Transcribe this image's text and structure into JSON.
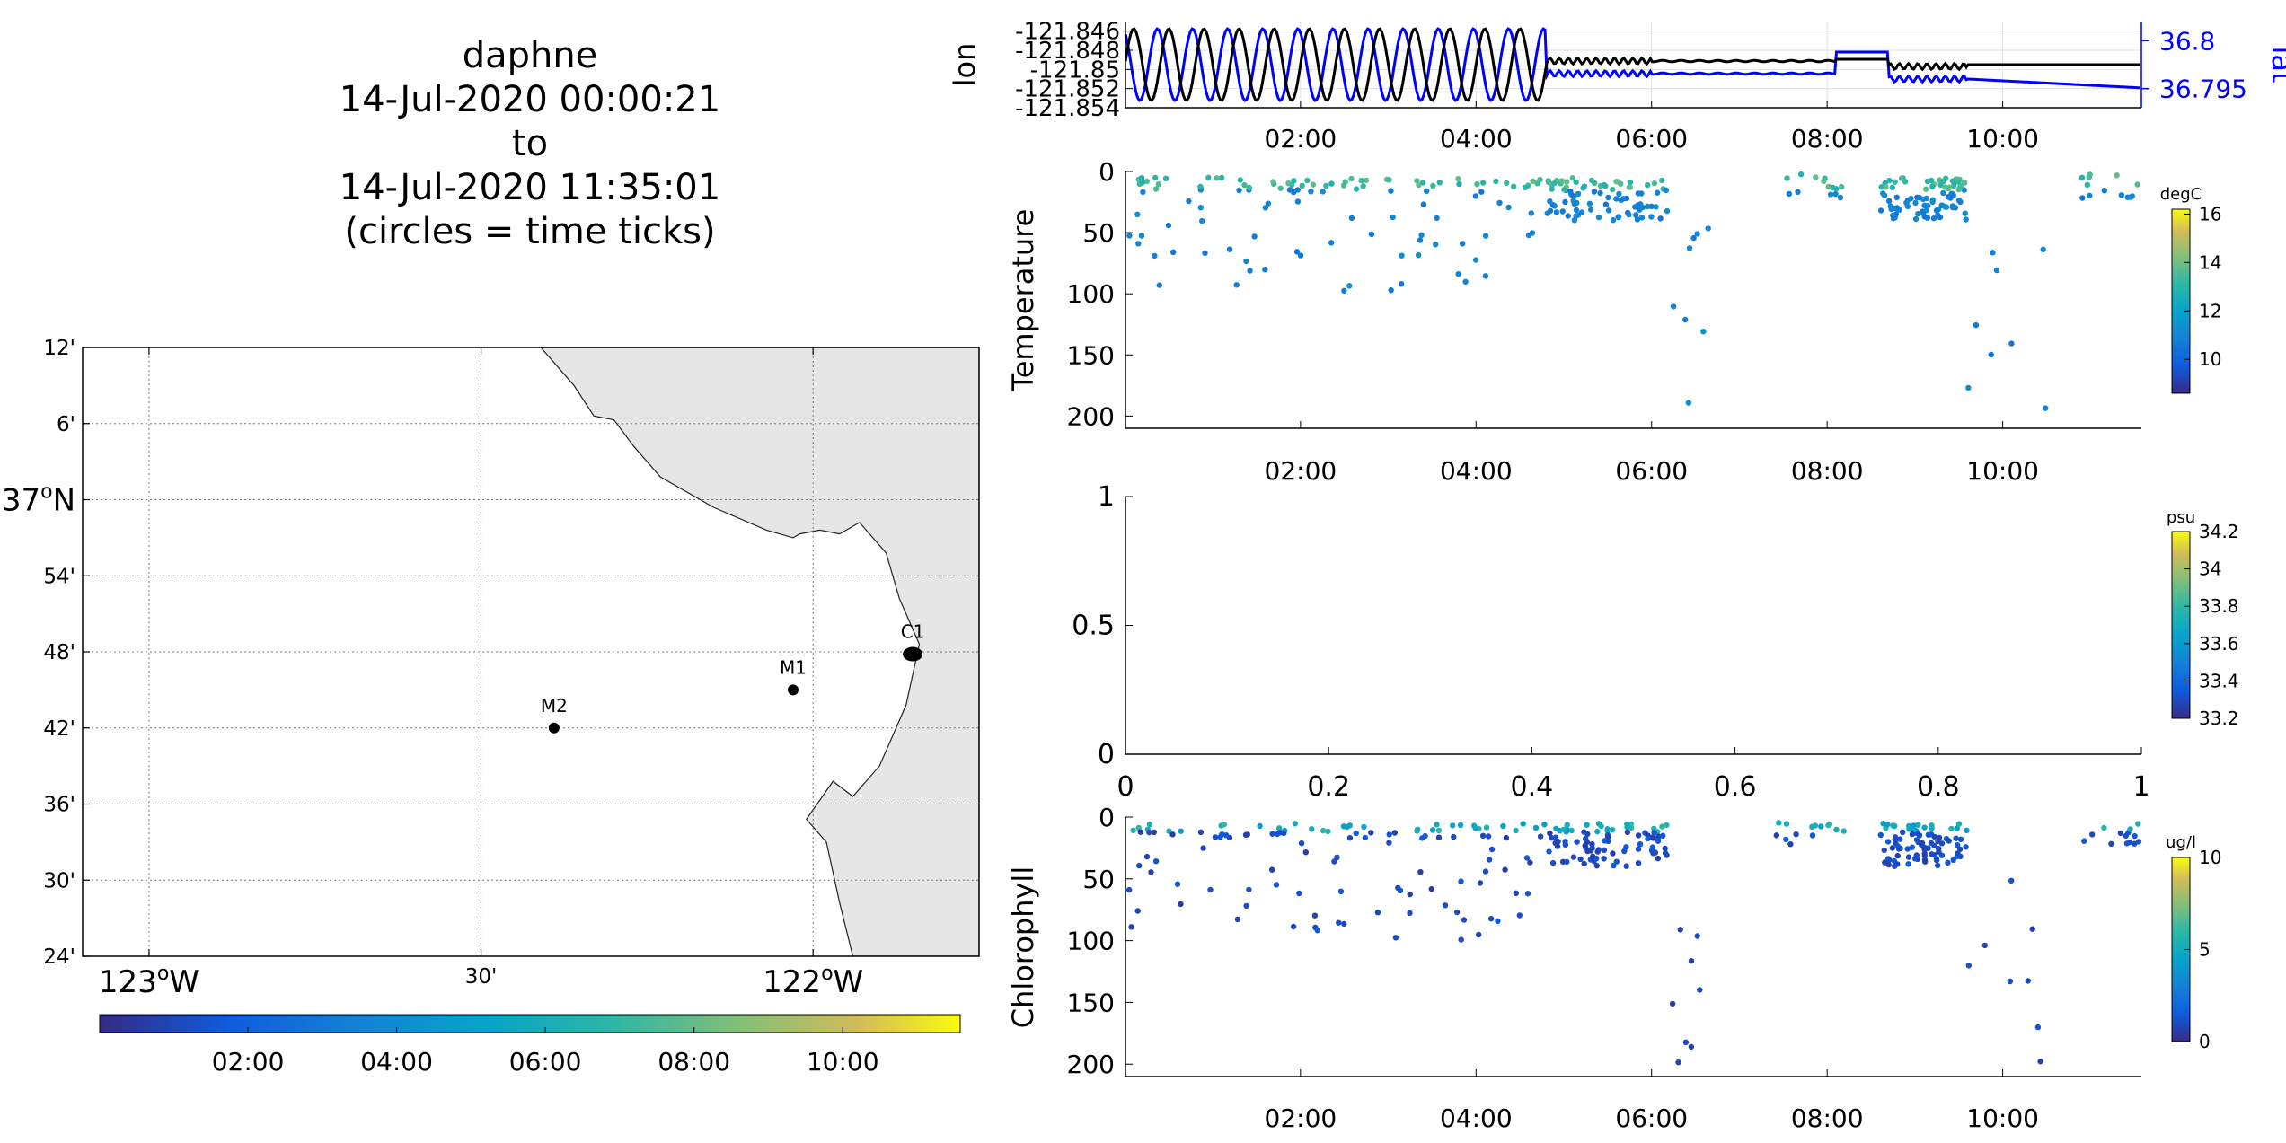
{
  "header": {
    "lines": [
      "daphne",
      "14-Jul-2020 00:00:21",
      "to",
      "14-Jul-2020 11:35:01",
      "(circles = time ticks)"
    ]
  },
  "colors": {
    "lon_line": "#000000",
    "lat_line": "#0000ff",
    "land": "#e6e6e6",
    "grid": "#888888"
  },
  "chart_data": [
    {
      "id": "map",
      "type": "scatter",
      "lat_ticks": [
        {
          "value": 37.2,
          "label": "12'"
        },
        {
          "value": 37.1,
          "label": "6'"
        },
        {
          "value": 37.0,
          "label": "37",
          "sup": "o",
          "suffix": "N"
        },
        {
          "value": 36.9,
          "label": "54'"
        },
        {
          "value": 36.8,
          "label": "48'"
        },
        {
          "value": 36.7,
          "label": "42'"
        },
        {
          "value": 36.6,
          "label": "36'"
        },
        {
          "value": 36.5,
          "label": "30'"
        },
        {
          "value": 36.4,
          "label": "24'"
        }
      ],
      "lon_ticks": [
        {
          "value": -123.0,
          "label": "123",
          "sup": "o",
          "suffix": "W"
        },
        {
          "value": -122.5,
          "label": "30'"
        },
        {
          "value": -122.0,
          "label": "122",
          "sup": "o",
          "suffix": "W"
        }
      ],
      "xlim": [
        -123.1,
        -121.75
      ],
      "ylim": [
        36.4,
        37.2
      ],
      "stations": [
        {
          "name": "M2",
          "lon": -122.39,
          "lat": 36.7
        },
        {
          "name": "M1",
          "lon": -122.03,
          "lat": 36.75
        },
        {
          "name": "C1",
          "lon": -121.85,
          "lat": 36.797
        }
      ],
      "coastline": [
        [
          -122.41,
          37.2
        ],
        [
          -122.36,
          37.15
        ],
        [
          -122.33,
          37.11
        ],
        [
          -122.3,
          37.105
        ],
        [
          -122.27,
          37.07
        ],
        [
          -122.23,
          37.03
        ],
        [
          -122.15,
          36.99
        ],
        [
          -122.07,
          36.96
        ],
        [
          -122.03,
          36.95
        ],
        [
          -122.02,
          36.955
        ],
        [
          -121.99,
          36.96
        ],
        [
          -121.96,
          36.955
        ],
        [
          -121.93,
          36.97
        ],
        [
          -121.89,
          36.93
        ],
        [
          -121.87,
          36.87
        ],
        [
          -121.84,
          36.81
        ],
        [
          -121.86,
          36.73
        ],
        [
          -121.88,
          36.69
        ],
        [
          -121.9,
          36.65
        ],
        [
          -121.94,
          36.61
        ],
        [
          -121.97,
          36.63
        ],
        [
          -122.01,
          36.58
        ],
        [
          -121.98,
          36.55
        ],
        [
          -121.96,
          36.47
        ],
        [
          -121.94,
          36.4
        ]
      ],
      "colorbar": {
        "ticks": [
          "02:00",
          "04:00",
          "06:00",
          "08:00",
          "10:00"
        ],
        "tick_hours": [
          2,
          4,
          6,
          8,
          10
        ],
        "range_hours": [
          0.006,
          11.58
        ]
      }
    },
    {
      "id": "lonlat",
      "type": "line",
      "ylabel": "lon",
      "ylabel_right": "lat",
      "ylim": [
        -121.854,
        -121.845
      ],
      "yticks": [
        "-121.846",
        "-121.848",
        "-121.85",
        "-121.852",
        "-121.854"
      ],
      "ytick_values": [
        -121.846,
        -121.848,
        -121.85,
        -121.852,
        -121.854
      ],
      "ylim_right": [
        36.793,
        36.802
      ],
      "yticks_right": [
        "36.8",
        "36.795"
      ],
      "ytick_right_values": [
        36.8,
        36.795
      ],
      "xlim_hours": [
        0.006,
        11.58
      ],
      "xticks": [
        "02:00",
        "04:00",
        "06:00",
        "08:00",
        "10:00"
      ],
      "xtick_hours": [
        2,
        4,
        6,
        8,
        10
      ]
    },
    {
      "id": "temperature",
      "type": "scatter",
      "ylabel": "Temperature",
      "ylim": [
        210,
        0
      ],
      "yticks": [
        "0",
        "50",
        "100",
        "150",
        "200"
      ],
      "ytick_values": [
        0,
        50,
        100,
        150,
        200
      ],
      "xlim_hours": [
        0.006,
        11.58
      ],
      "xticks": [
        "02:00",
        "04:00",
        "06:00",
        "08:00",
        "10:00"
      ],
      "xtick_hours": [
        2,
        4,
        6,
        8,
        10
      ],
      "colorbar": {
        "label": "degC",
        "ticks": [
          "16",
          "14",
          "12",
          "10"
        ],
        "tick_values": [
          16,
          14,
          12,
          10
        ],
        "range": [
          8.6,
          16.2
        ]
      }
    },
    {
      "id": "salinity",
      "type": "scatter",
      "xlim": [
        0,
        1
      ],
      "ylim": [
        0,
        1
      ],
      "xticks": [
        "0",
        "0.2",
        "0.4",
        "0.6",
        "0.8",
        "1"
      ],
      "xtick_values": [
        0,
        0.2,
        0.4,
        0.6,
        0.8,
        1
      ],
      "yticks": [
        "1",
        "0.5",
        "0"
      ],
      "ytick_values": [
        1,
        0.5,
        0
      ],
      "colorbar": {
        "label": "psu",
        "ticks": [
          "34.2",
          "34",
          "33.8",
          "33.6",
          "33.4",
          "33.2"
        ],
        "tick_values": [
          34.2,
          34,
          33.8,
          33.6,
          33.4,
          33.2
        ],
        "range": [
          33.2,
          34.2
        ]
      }
    },
    {
      "id": "chlorophyll",
      "type": "scatter",
      "ylabel": "Chlorophyll",
      "ylim": [
        210,
        0
      ],
      "yticks": [
        "0",
        "50",
        "100",
        "150",
        "200"
      ],
      "ytick_values": [
        0,
        50,
        100,
        150,
        200
      ],
      "xlim_hours": [
        0.006,
        11.58
      ],
      "xticks": [
        "02:00",
        "04:00",
        "06:00",
        "08:00",
        "10:00"
      ],
      "xtick_hours": [
        2,
        4,
        6,
        8,
        10
      ],
      "colorbar": {
        "label": "ug/l",
        "ticks": [
          "10",
          "5",
          "0"
        ],
        "tick_values": [
          10,
          5,
          0
        ],
        "range": [
          0,
          10
        ]
      }
    }
  ]
}
